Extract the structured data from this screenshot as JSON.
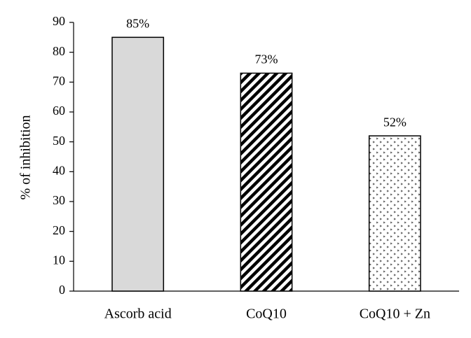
{
  "chart_data": {
    "type": "bar",
    "ylabel": "% of inhibition",
    "categories": [
      "Ascorb acid",
      "CoQ10",
      "CoQ10 + Zn"
    ],
    "values": [
      85,
      73,
      52
    ],
    "value_labels": [
      "85%",
      "73%",
      "52%"
    ],
    "colors": [
      "#d9d9d9",
      "#000000",
      "#555555"
    ],
    "patterns": [
      "solid",
      "diagonal",
      "dots"
    ],
    "ylim": [
      0,
      90
    ],
    "yticks": [
      0,
      10,
      20,
      30,
      40,
      50,
      60,
      70,
      80,
      90
    ],
    "grid": false
  }
}
